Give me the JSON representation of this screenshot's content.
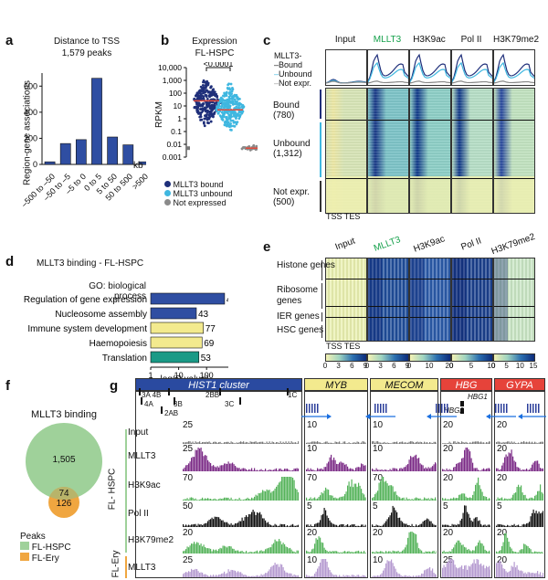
{
  "panels": {
    "a": {
      "label": "a",
      "title": "Distance to TSS",
      "subtitle": "1,579 peaks",
      "ylabel": "Region-gene associations",
      "xunit": "kb"
    },
    "b": {
      "label": "b",
      "title": "Expression",
      "subtitle": "FL-HSPC",
      "ylabel": "RPKM",
      "pvalue": "<0.0001",
      "yticks": [
        "10,000",
        "1,000",
        "100",
        "10",
        "1",
        "0.1",
        "0.01",
        "0.001"
      ],
      "legend": [
        {
          "name": "MLLT3 bound",
          "color": "#1f2f7a"
        },
        {
          "name": "MLLT3 unbound",
          "color": "#3fb7e0"
        },
        {
          "name": "Not expressed",
          "color": "#8a8a8a"
        }
      ]
    },
    "c": {
      "label": "c",
      "tracks": [
        "Input",
        "MLLT3",
        "H3K9ac",
        "Pol II",
        "H3K79me2"
      ],
      "legend_title": "MLLT3-",
      "legend": [
        "Bound",
        "Unbound",
        "Not expr."
      ],
      "groups": [
        {
          "name": "Bound",
          "count": "(780)"
        },
        {
          "name": "Unbound",
          "count": "(1,312)"
        },
        {
          "name": "Not expr.",
          "count": "(500)"
        }
      ],
      "axis": "TSS TES"
    },
    "d": {
      "label": "d",
      "title": "MLLT3 binding - FL-HSPC",
      "category": "GO: biological process",
      "xlabel": "–log(P value)",
      "terms": [
        {
          "name": "Regulation of gene expression",
          "value": 441,
          "color": "#2f4ea2"
        },
        {
          "name": "Nucleosome assembly",
          "value": 43,
          "color": "#2f4ea2"
        },
        {
          "name": "Immune system development",
          "value": 77,
          "color": "#f3ea8e"
        },
        {
          "name": "Haemopoiesis",
          "value": 69,
          "color": "#f3ea8e"
        },
        {
          "name": "Translation",
          "value": 53,
          "color": "#1a9a86"
        }
      ],
      "xticks": [
        "1",
        "10",
        "100"
      ]
    },
    "e": {
      "label": "e",
      "tracks": [
        "Input",
        "MLLT3",
        "H3K9ac",
        "Pol II",
        "H3K79me2"
      ],
      "groups": [
        "Histone genes",
        "Ribosome genes",
        "IER genes",
        "HSC genes"
      ],
      "axis": "TSS TES",
      "scales": [
        [
          "0",
          "3",
          "6",
          "9"
        ],
        [
          "0",
          "3",
          "6",
          "9"
        ],
        [
          "0",
          "10",
          "20"
        ],
        [
          "0",
          "5",
          "10"
        ],
        [
          "0",
          "5",
          "10",
          "15"
        ]
      ]
    },
    "f": {
      "label": "f",
      "title": "MLLT3 binding",
      "hspc_only": "1,505",
      "overlap": "74",
      "ery_only": "126",
      "legend_title": "Peaks",
      "legend": [
        {
          "name": "FL-HSPC",
          "color": "#9fd19a"
        },
        {
          "name": "FL-Ery",
          "color": "#f0a640"
        }
      ]
    },
    "g": {
      "label": "g",
      "loci": [
        {
          "name": "HIST1 cluster",
          "color": "#2a4aa0",
          "text_color": "#ffffff"
        },
        {
          "name": "MYB",
          "color": "#f3ea8e",
          "text_color": "#111111"
        },
        {
          "name": "MECOM",
          "color": "#f3ea8e",
          "text_color": "#111111"
        },
        {
          "name": "HBG",
          "color": "#e6433a",
          "text_color": "#ffffff"
        },
        {
          "name": "GYPA",
          "color": "#e6433a",
          "text_color": "#ffffff"
        }
      ],
      "hist_genes": [
        "3A",
        "4B",
        "2BB",
        "1C",
        "4A",
        "3B",
        "3C",
        "2AB"
      ],
      "hbg_genes": [
        "HBG1",
        "HBG2"
      ],
      "group_labels": [
        "FL- HSPC",
        "FL-Ery"
      ],
      "rows": [
        {
          "name": "Input",
          "scales": [
            "25",
            "10",
            "10",
            "20",
            "20"
          ],
          "color": "#777777"
        },
        {
          "name": "MLLT3",
          "scales": [
            "25",
            "10",
            "10",
            "20",
            "20"
          ],
          "color": "#7b2a86"
        },
        {
          "name": "H3K9ac",
          "scales": [
            "70",
            "70",
            "70",
            "20",
            "20"
          ],
          "color": "#55b35a"
        },
        {
          "name": "Pol II",
          "scales": [
            "50",
            "5",
            "5",
            "5",
            "5"
          ],
          "color": "#111111"
        },
        {
          "name": "H3K79me2",
          "scales": [
            "20",
            "20",
            "20",
            "20",
            "20"
          ],
          "color": "#55b35a"
        },
        {
          "name": "MLLT3",
          "scales": [
            "25",
            "10",
            "10",
            "25",
            "20"
          ],
          "color": "#b59ad0"
        }
      ]
    }
  },
  "chart_data": [
    {
      "type": "bar",
      "title": "Distance to TSS",
      "subtitle": "1,579 peaks",
      "categories": [
        "-500 to -50",
        "-50 to -5",
        "-5 to 0",
        "0 to 5",
        "5 to 50",
        "50 to 500",
        ">500"
      ],
      "display_categories": [
        "–500 to –50",
        "–50 to –5",
        "–5 to 0",
        "0 to 5",
        "5 to 50",
        "50 to 500",
        ">500"
      ],
      "values": [
        20,
        160,
        190,
        660,
        210,
        150,
        20
      ],
      "ylabel": "Region-gene associations",
      "xlabel": "kb",
      "ylim": [
        0,
        700
      ],
      "yticks": [
        0,
        200,
        400,
        600
      ]
    },
    {
      "type": "bar",
      "title": "MLLT3 binding - FL-HSPC",
      "categories": [
        "Regulation of gene expression",
        "Nucleosome assembly",
        "Immune system development",
        "Haemopoiesis",
        "Translation"
      ],
      "values": [
        441,
        43,
        77,
        69,
        53
      ],
      "xlabel": "–log(P value)",
      "scale": "log"
    }
  ]
}
